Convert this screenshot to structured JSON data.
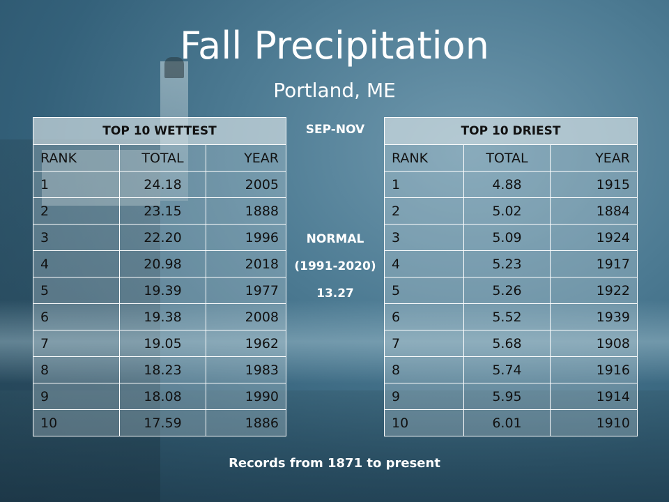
{
  "title": "Fall Precipitation",
  "subtitle": "Portland, ME",
  "center": {
    "period": "SEP-NOV",
    "normal_label": "NORMAL",
    "normal_range": "(1991-2020)",
    "normal_value": "13.27"
  },
  "wettest": {
    "header": "TOP 10 WETTEST",
    "columns": [
      "RANK",
      "TOTAL",
      "YEAR"
    ],
    "rows": [
      [
        "1",
        "24.18",
        "2005"
      ],
      [
        "2",
        "23.15",
        "1888"
      ],
      [
        "3",
        "22.20",
        "1996"
      ],
      [
        "4",
        "20.98",
        "2018"
      ],
      [
        "5",
        "19.39",
        "1977"
      ],
      [
        "6",
        "19.38",
        "2008"
      ],
      [
        "7",
        "19.05",
        "1962"
      ],
      [
        "8",
        "18.23",
        "1983"
      ],
      [
        "9",
        "18.08",
        "1990"
      ],
      [
        "10",
        "17.59",
        "1886"
      ]
    ]
  },
  "driest": {
    "header": "TOP 10 DRIEST",
    "columns": [
      "RANK",
      "TOTAL",
      "YEAR"
    ],
    "rows": [
      [
        "1",
        "4.88",
        "1915"
      ],
      [
        "2",
        "5.02",
        "1884"
      ],
      [
        "3",
        "5.09",
        "1924"
      ],
      [
        "4",
        "5.23",
        "1917"
      ],
      [
        "5",
        "5.26",
        "1922"
      ],
      [
        "6",
        "5.52",
        "1939"
      ],
      [
        "7",
        "5.68",
        "1908"
      ],
      [
        "8",
        "5.74",
        "1916"
      ],
      [
        "9",
        "5.95",
        "1914"
      ],
      [
        "10",
        "6.01",
        "1910"
      ]
    ]
  },
  "footer": "Records from 1871 to present"
}
